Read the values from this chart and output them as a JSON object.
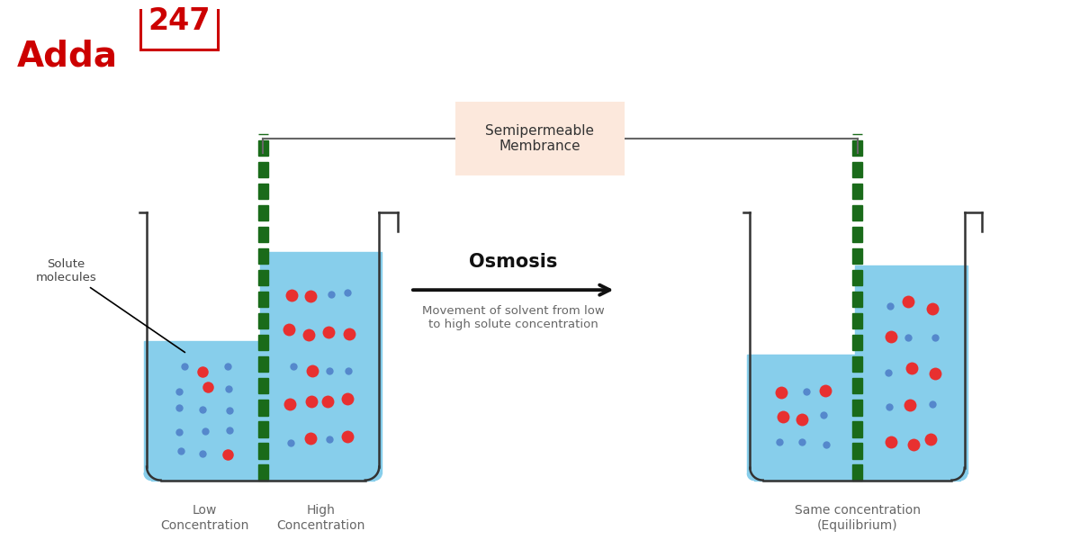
{
  "bg_color": "#ffffff",
  "beaker_line_color": "#333333",
  "liquid_color": "#87CEEB",
  "membrane_color": "#1a6b1a",
  "red_dot_color": "#e83030",
  "blue_dot_color": "#5588cc",
  "arrow_color": "#111111",
  "semiperm_box_color": "#fce8dc",
  "osmosis_label": "Osmosis",
  "osmosis_sub": "Movement of solvent from low\nto high solute concentration",
  "semiperm_label": "Semipermeable\nMembrance",
  "solute_label": "Solute\nmolecules",
  "logo_color": "#cc0000",
  "label_low": "Low\nConcentration",
  "label_high": "High\nConcentration",
  "label_equil": "Same concentration\n(Equilibrium)"
}
